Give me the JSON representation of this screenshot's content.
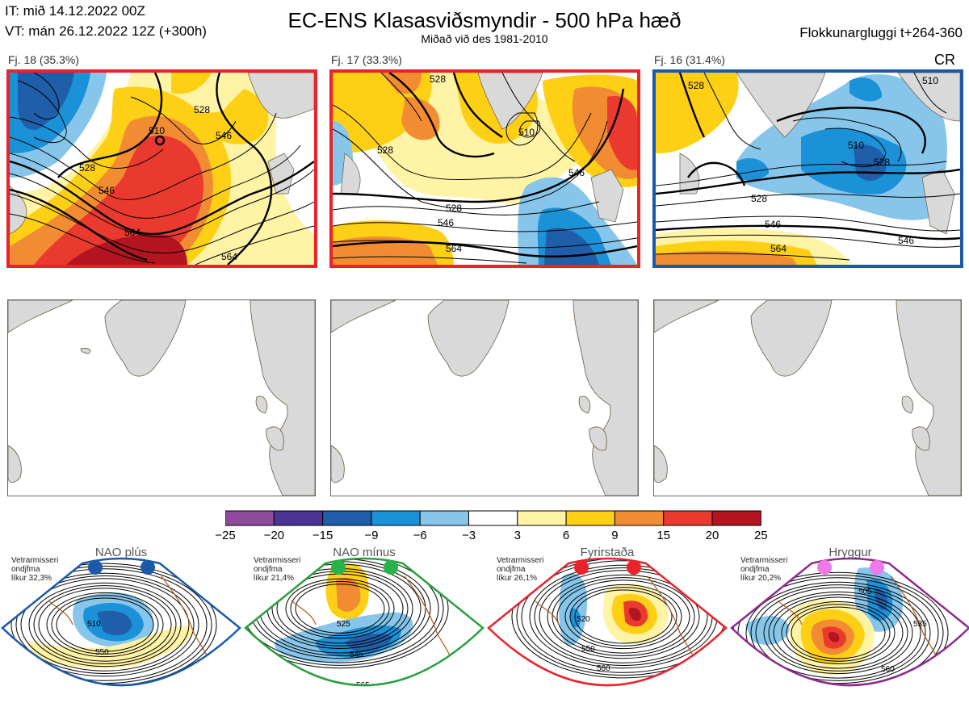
{
  "header": {
    "issue_time": "IT: mið 14.12.2022 00Z",
    "valid_time": "VT: mán 26.12.2022 12Z  (+300h)",
    "title": "EC-ENS Klasasviðsmyndir - 500 hPa hæð",
    "subtitle": "Miðað við des 1981-2010",
    "window": "Flokkunargluggi t+264-360"
  },
  "clusters": [
    {
      "label": "Fj. 18 (35.3%)",
      "border_color": "#e8232a",
      "contour_labels": [
        "510",
        "528",
        "546",
        "528",
        "546",
        "564",
        "564"
      ]
    },
    {
      "label": "Fj. 17 (33.3%)",
      "border_color": "#e8232a",
      "contour_labels": [
        "528",
        "510",
        "528",
        "528",
        "546",
        "564",
        "546"
      ]
    },
    {
      "label": "Fj. 16 (31.4%)",
      "border_color": "#1a5aa8",
      "tag": "CR",
      "contour_labels": [
        "528",
        "510",
        "510",
        "528",
        "528",
        "546",
        "564",
        "546"
      ]
    }
  ],
  "colorbar": {
    "ticks": [
      "−25",
      "−20",
      "−15",
      "−9",
      "−6",
      "−3",
      "3",
      "6",
      "9",
      "15",
      "20",
      "25"
    ],
    "colors": [
      "#8e4b9b",
      "#4b3595",
      "#1f5ea8",
      "#1b91d8",
      "#87c6ea",
      "#ffffff",
      "#fff3a6",
      "#fdd016",
      "#f28c32",
      "#ea3a2f",
      "#b31520"
    ]
  },
  "regimes": [
    {
      "name": "NAO plús",
      "color": "#1a5aa8",
      "note": [
        "Vetrarmisseri",
        "ondjfma",
        "líkur 32,3%"
      ],
      "dot_color": "#1a5aa8",
      "contour_labels": [
        "510",
        "550"
      ]
    },
    {
      "name": "NAO mínus",
      "color": "#2a9f3f",
      "note": [
        "Vetrarmisseri",
        "ondjfma",
        "líkur 21,4%"
      ],
      "dot_color": "#2ab24a",
      "contour_labels": [
        "525",
        "545",
        "565"
      ]
    },
    {
      "name": "Fyrirstaða",
      "color": "#e8232a",
      "note": [
        "Vetrarmisseri",
        "ondjfma",
        "líkur 26,1%"
      ],
      "dot_color": "#e8232a",
      "contour_labels": [
        "520",
        "550",
        "560"
      ]
    },
    {
      "name": "Hryggur",
      "color": "#8e2a8e",
      "note": [
        "Vetrarmisseri",
        "ondjfma",
        "líkur 20,2%"
      ],
      "dot_color": "#ee7ae8",
      "contour_labels": [
        "505",
        "535",
        "560"
      ]
    }
  ]
}
